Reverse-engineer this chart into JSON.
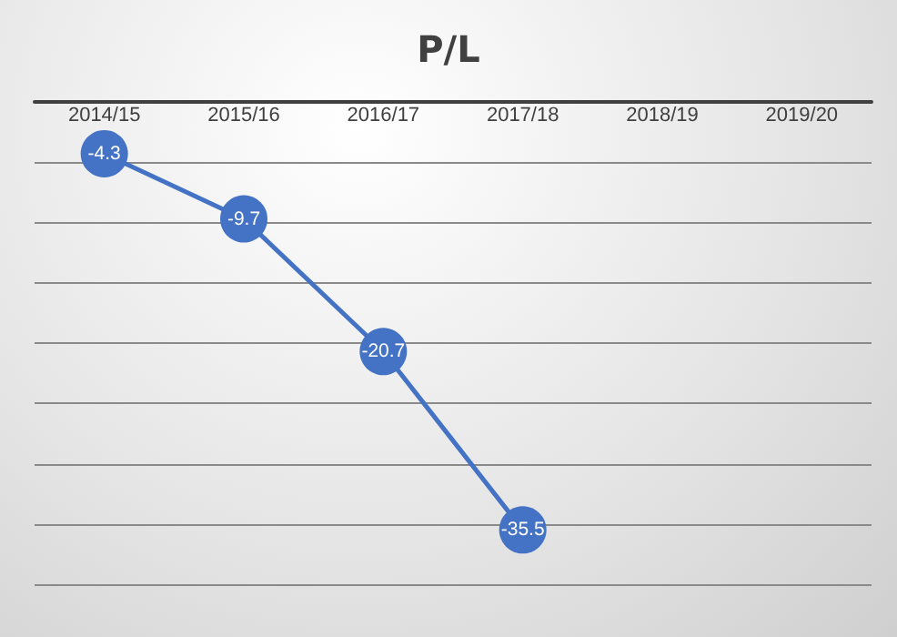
{
  "chart_data": {
    "type": "line",
    "title": "P/L",
    "categories": [
      "2014/15",
      "2015/16",
      "2016/17",
      "2017/18",
      "2018/19",
      "2019/20"
    ],
    "series": [
      {
        "color": "#4472c4",
        "values": [
          -4.3,
          -9.7,
          -20.7,
          -35.5,
          null,
          null
        ]
      }
    ],
    "ylim": [
      -40,
      0
    ],
    "yticks": [
      {
        "value": -40,
        "label": null
      },
      {
        "value": -35,
        "label": null
      },
      {
        "value": -30,
        "label": null
      },
      {
        "value": -25,
        "label": null
      },
      {
        "value": -20,
        "label": null
      },
      {
        "value": -15,
        "label": null
      },
      {
        "value": -10,
        "label": null
      },
      {
        "value": -5,
        "label": null
      },
      {
        "value": 0,
        "label": null
      }
    ],
    "tick_labels": "x",
    "grid": "y",
    "marker": "circle",
    "line_style": "solid",
    "data_labels": true
  }
}
